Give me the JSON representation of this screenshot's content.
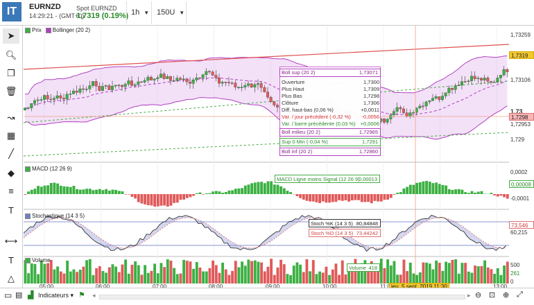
{
  "header": {
    "logo": "IT",
    "symbol": "EURNZD",
    "time": "14:29:21 - (GMT+0)",
    "spot_label": "Spot EURNZD",
    "spot_value": "1,7319 (0.19%)",
    "timeframe": "1h",
    "bars": "150U"
  },
  "legend": {
    "price": "Prix",
    "bollinger": "Bollinger (20 2)"
  },
  "tooltip": {
    "boll_sup_label": "Boll sup (20 2)",
    "boll_sup_value": "1,73071",
    "open_label": "Ouverture",
    "open_value": "1,7300",
    "high_label": "Plus Haut",
    "high_value": "1,7309",
    "low_label": "Plus Bas",
    "low_value": "1,7298",
    "close_label": "Clôture",
    "close_value": "1,7306",
    "diff_label": "Diff. haut-bas (0,06 %)",
    "diff_value": "+0,0011",
    "prevday_label": "Var. / jour précédent (-0,32 %)",
    "prevday_value": "-0,0056",
    "prevbar_label": "Var. / barre précédente (0,03 %)",
    "prevbar_value": "+0,0006",
    "boll_mid_label": "Boll milieu (20 2)",
    "boll_mid_value": "1,72965",
    "sup0_label": "Sup 0 Min (-0,04 %)",
    "sup0_value": "1,7291",
    "boll_inf_label": "Boll inf (20 2)",
    "boll_inf_value": "1,72860"
  },
  "price_axis": {
    "labels": [
      "1,73259",
      "1,73106",
      "1,73",
      "1,72953",
      "1,729"
    ],
    "hl_current": "1,7319",
    "hl_cross": "1,7298"
  },
  "macd": {
    "label": "MACD (12 26 9)",
    "signal_label": "MACD Ligne moins Signal (12 26 9)",
    "signal_value": "0,00013",
    "axis": [
      "0,0002",
      "-0,0001"
    ],
    "axis_hl": "0,00008"
  },
  "stoch": {
    "label": "Stochastique (14 3 5)",
    "k_label": "Stoch %K (14 3 5)",
    "k_value": "80,84848",
    "d_label": "Stoch %D (14 3 5)",
    "d_value": "73,44242",
    "axis_hl_red": "73,546",
    "axis_hl": "60,215"
  },
  "volume": {
    "label": "Volume",
    "tip_label": "Volume",
    "tip_value": "418",
    "axis": [
      "500",
      "261",
      "0"
    ]
  },
  "time_axis": {
    "labels": [
      "05:00",
      "06:00",
      "07:00",
      "08:00",
      "09:00",
      "10:00",
      "11:00",
      "13:00"
    ],
    "cursor": "jeu. 5 sept. 2019 11:30"
  },
  "bottom": {
    "indicators": "Indicateurs"
  },
  "colors": {
    "up": "#3cb043",
    "down": "#e05a5a",
    "bollinger": "#b040c0",
    "trend": "#e05050",
    "support": "#44aa44"
  }
}
